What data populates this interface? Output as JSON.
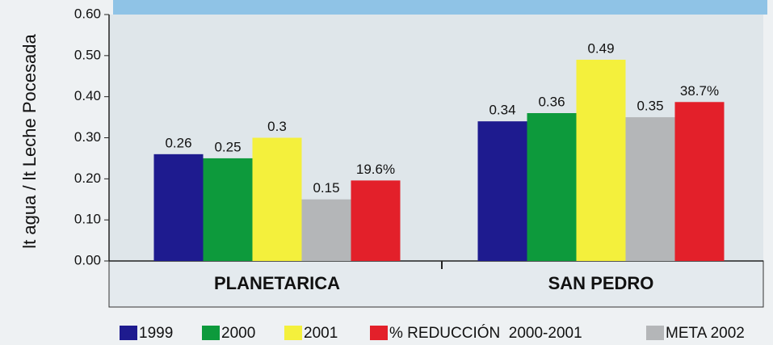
{
  "chart_data": {
    "type": "bar",
    "y_label": "lt agua / lt Leche Pocesada",
    "categories": [
      "PLANETARICA",
      "SAN PEDRO"
    ],
    "series": [
      {
        "name": "1999",
        "color": "#1e1b8f",
        "values": [
          0.26,
          0.34
        ]
      },
      {
        "name": "2000",
        "color": "#0d9a3c",
        "values": [
          0.25,
          0.36
        ]
      },
      {
        "name": "2001",
        "color": "#f4f03c",
        "values": [
          0.3,
          0.49
        ]
      },
      {
        "name": "% REDUCCIÓN  2000-2001",
        "color": "#e3202a",
        "values": [
          0.196,
          0.387
        ],
        "value_labels": [
          "19.6%",
          "38.7%"
        ]
      },
      {
        "name": "META 2002",
        "color": "#b4b6b8",
        "values": [
          0.15,
          0.35
        ]
      }
    ],
    "ylim": [
      0,
      0.6
    ],
    "yticks": [
      {
        "value": 0,
        "label": "0.00"
      },
      {
        "value": 0.1,
        "label": "0.10"
      },
      {
        "value": 0.2,
        "label": "0.20"
      },
      {
        "value": 0.3,
        "label": "0.30"
      },
      {
        "value": 0.4,
        "label": "0.40"
      },
      {
        "value": 0.5,
        "label": "0.50"
      },
      {
        "value": 0.6,
        "label": "0.60"
      }
    ]
  }
}
